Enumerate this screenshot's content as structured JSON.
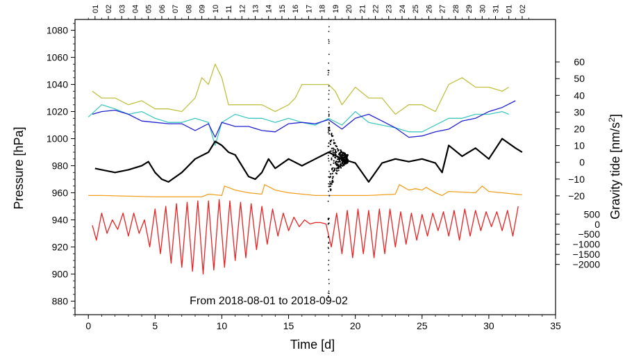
{
  "chart_data": {
    "type": "line",
    "annotation": "From 2018-08-01 to 2018-09-02",
    "xlabel": "Time [d]",
    "ylabel_left": "Pressure [hPa]",
    "ylabel_right_prefix": "Gravity tide [nm/s",
    "ylabel_right_sup": "2",
    "ylabel_right_suffix": "]",
    "xlim": [
      -1,
      35
    ],
    "ylim_left": [
      870,
      1088
    ],
    "x_ticks": [
      0,
      5,
      10,
      15,
      20,
      25,
      30,
      35
    ],
    "x_tick_labels": [
      "0",
      "5",
      "10",
      "15",
      "20",
      "25",
      "30",
      "35"
    ],
    "y_left_ticks": [
      880,
      900,
      920,
      940,
      960,
      980,
      1000,
      1020,
      1040,
      1060,
      1080
    ],
    "y_left_tick_labels": [
      "880",
      "900",
      "920",
      "940",
      "960",
      "980",
      "1000",
      "1020",
      "1040",
      "1060",
      "1080"
    ],
    "y_right_upper_ticks": [
      -20,
      -10,
      0,
      10,
      20,
      30,
      40,
      50,
      60
    ],
    "y_right_upper_tick_labels": [
      "−20",
      "−10",
      "0",
      "10",
      "20",
      "30",
      "40",
      "50",
      "60"
    ],
    "y_right_upper_pressure_at_zero": 982.5,
    "y_right_upper_pressure_per_unit": 1.236,
    "y_right_lower_ticks": [
      -2000,
      -1500,
      -1000,
      -500,
      0,
      500
    ],
    "y_right_lower_tick_labels": [
      "−2000",
      "−1500",
      "−1000",
      "−500",
      "0",
      "500"
    ],
    "y_right_lower_pressure_at_zero": 936.8,
    "y_right_lower_pressure_per_unit": 0.01485,
    "top_day_ticks": [
      0.5,
      1.5,
      2.5,
      3.5,
      4.5,
      5.5,
      6.5,
      7.5,
      8.5,
      9.5,
      10.5,
      11.5,
      12.5,
      13.5,
      14.5,
      15.5,
      16.5,
      17.5,
      18.5,
      19.5,
      20.5,
      21.5,
      22.5,
      23.5,
      24.5,
      25.5,
      26.5,
      27.5,
      28.5,
      29.5,
      30.5,
      31.5,
      32.5
    ],
    "top_day_labels": [
      "01",
      "02",
      "03",
      "04",
      "05",
      "06",
      "07",
      "08",
      "09",
      "10",
      "11",
      "12",
      "13",
      "14",
      "15",
      "16",
      "17",
      "18",
      "19",
      "20",
      "21",
      "22",
      "23",
      "24",
      "25",
      "26",
      "27",
      "28",
      "29",
      "30",
      "31",
      "01",
      "02"
    ],
    "event_x": 18.0,
    "series": [
      {
        "name": "olive pressure",
        "color": "#c0c040",
        "x": [
          0.3,
          1,
          2,
          3,
          4,
          5,
          6,
          7,
          8,
          8.5,
          9,
          9.5,
          10,
          10.5,
          11,
          12,
          13,
          14,
          15,
          15.5,
          16,
          17,
          18,
          18.5,
          19,
          20,
          21,
          22,
          23,
          24,
          25,
          26,
          26.5,
          27,
          28,
          29,
          30,
          31,
          31.5
        ],
        "y": [
          1035,
          1030,
          1030,
          1025,
          1028,
          1022,
          1022,
          1020,
          1030,
          1045,
          1040,
          1055,
          1045,
          1025,
          1025,
          1025,
          1025,
          1020,
          1025,
          1030,
          1040,
          1040,
          1040,
          1035,
          1025,
          1038,
          1030,
          1030,
          1018,
          1025,
          1025,
          1020,
          1030,
          1040,
          1045,
          1038,
          1038,
          1035,
          1038
        ]
      },
      {
        "name": "cyan pressure",
        "color": "#40c8c0",
        "x": [
          0,
          1,
          2,
          3,
          4,
          5,
          6,
          7,
          8,
          9,
          9.5,
          10,
          11,
          12,
          13,
          14,
          15,
          16,
          17,
          18,
          19,
          20,
          21,
          22,
          23,
          24,
          25,
          26,
          27,
          28,
          29,
          30,
          31,
          31.5
        ],
        "y": [
          1016,
          1025,
          1022,
          1018,
          1020,
          1015,
          1012,
          1012,
          1015,
          1012,
          995,
          1012,
          1018,
          1015,
          1015,
          1012,
          1015,
          1012,
          1010,
          1015,
          1010,
          1020,
          1012,
          1010,
          1008,
          1005,
          1005,
          1010,
          1015,
          1015,
          1018,
          1018,
          1020,
          1018
        ]
      },
      {
        "name": "blue pressure",
        "color": "#2020d0",
        "x": [
          0.3,
          1,
          2,
          3,
          4,
          5,
          6,
          7,
          8,
          9,
          9.5,
          10,
          11,
          12,
          13,
          14,
          15,
          16,
          17,
          18,
          19,
          20,
          21,
          22,
          23,
          24,
          25,
          26,
          27,
          28,
          29,
          30,
          31,
          32
        ],
        "y": [
          1018,
          1020,
          1021,
          1018,
          1013,
          1012,
          1011,
          1011,
          1006,
          1011,
          1001,
          1012,
          1009,
          1009,
          1006,
          1005,
          1011,
          1012,
          1011,
          1014,
          1007,
          1015,
          1018,
          1013,
          1008,
          1001,
          1002,
          1005,
          1007,
          1013,
          1015,
          1020,
          1023,
          1028
        ]
      },
      {
        "name": "black pressure",
        "color": "#000000",
        "x": [
          0.5,
          1,
          2,
          3,
          4,
          4.5,
          5,
          5.5,
          6,
          7,
          7.5,
          8,
          9,
          9.5,
          10,
          10.5,
          11,
          12,
          12.5,
          13,
          13.5,
          14,
          15,
          16,
          17,
          18,
          19,
          20,
          20.5,
          21,
          22,
          23,
          24,
          25,
          26,
          26.5,
          27,
          28,
          29,
          30,
          31,
          32,
          32.5
        ],
        "y": [
          978,
          977,
          975,
          977,
          980,
          983,
          975,
          970,
          968,
          975,
          980,
          985,
          990,
          998,
          995,
          990,
          988,
          972,
          970,
          975,
          985,
          978,
          985,
          980,
          985,
          990,
          985,
          982,
          975,
          968,
          982,
          985,
          983,
          985,
          982,
          975,
          995,
          987,
          993,
          985,
          1000,
          993,
          990
        ]
      },
      {
        "name": "orange pressure",
        "color": "#f0a020",
        "x": [
          0,
          1,
          3,
          5,
          7,
          8.5,
          9,
          10,
          10.2,
          11,
          12,
          13,
          13.2,
          14,
          15,
          17,
          18,
          19,
          20,
          21,
          23,
          23.3,
          24,
          24.5,
          25,
          25.3,
          26,
          26.5,
          27,
          29,
          29.5,
          30,
          31,
          32.5
        ],
        "y": [
          958,
          958,
          957.5,
          957,
          957,
          957,
          959,
          958,
          965,
          962,
          960,
          959,
          966,
          962,
          960,
          958,
          958,
          958,
          958,
          958,
          959,
          966,
          962,
          963,
          962,
          964,
          960,
          958,
          961,
          960,
          965,
          961,
          960,
          958.5
        ]
      },
      {
        "name": "red gravity tide",
        "color": "#e82020",
        "x": [
          0.3,
          0.6,
          1,
          1.4,
          1.8,
          2.2,
          2.6,
          3,
          3.4,
          3.8,
          4.2,
          4.6,
          5,
          5.4,
          5.8,
          6.2,
          6.6,
          7,
          7.4,
          7.8,
          8.2,
          8.6,
          9,
          9.4,
          9.8,
          10.2,
          10.6,
          11,
          11.4,
          11.8,
          12.2,
          12.6,
          13,
          13.4,
          13.8,
          14.2,
          14.6,
          15,
          15.4,
          15.8,
          16.2,
          16.6,
          17,
          17.4,
          17.8,
          18.2,
          18.6,
          19,
          19.4,
          19.8,
          20.2,
          20.6,
          21,
          21.4,
          21.8,
          22.2,
          22.6,
          23,
          23.4,
          23.8,
          24.2,
          24.6,
          25,
          25.4,
          25.8,
          26.2,
          26.6,
          27,
          27.4,
          27.8,
          28.2,
          28.6,
          29,
          29.4,
          29.8,
          30.2,
          30.6,
          31,
          31.4,
          31.8,
          32.2
        ],
        "y": [
          936,
          925,
          945,
          930,
          940,
          933,
          945,
          928,
          945,
          930,
          940,
          920,
          948,
          915,
          950,
          908,
          952,
          905,
          953,
          902,
          954,
          900,
          954,
          903,
          955,
          905,
          954,
          910,
          953,
          912,
          952,
          918,
          950,
          922,
          948,
          928,
          945,
          932,
          942,
          935,
          940,
          937,
          938,
          938,
          937,
          920,
          945,
          915,
          947,
          912,
          948,
          915,
          947,
          912,
          948,
          915,
          948,
          920,
          946,
          922,
          945,
          925,
          944,
          928,
          945,
          932,
          946,
          928,
          947,
          925,
          948,
          928,
          947,
          932,
          946,
          935,
          946,
          932,
          947,
          928,
          950
        ]
      }
    ]
  }
}
